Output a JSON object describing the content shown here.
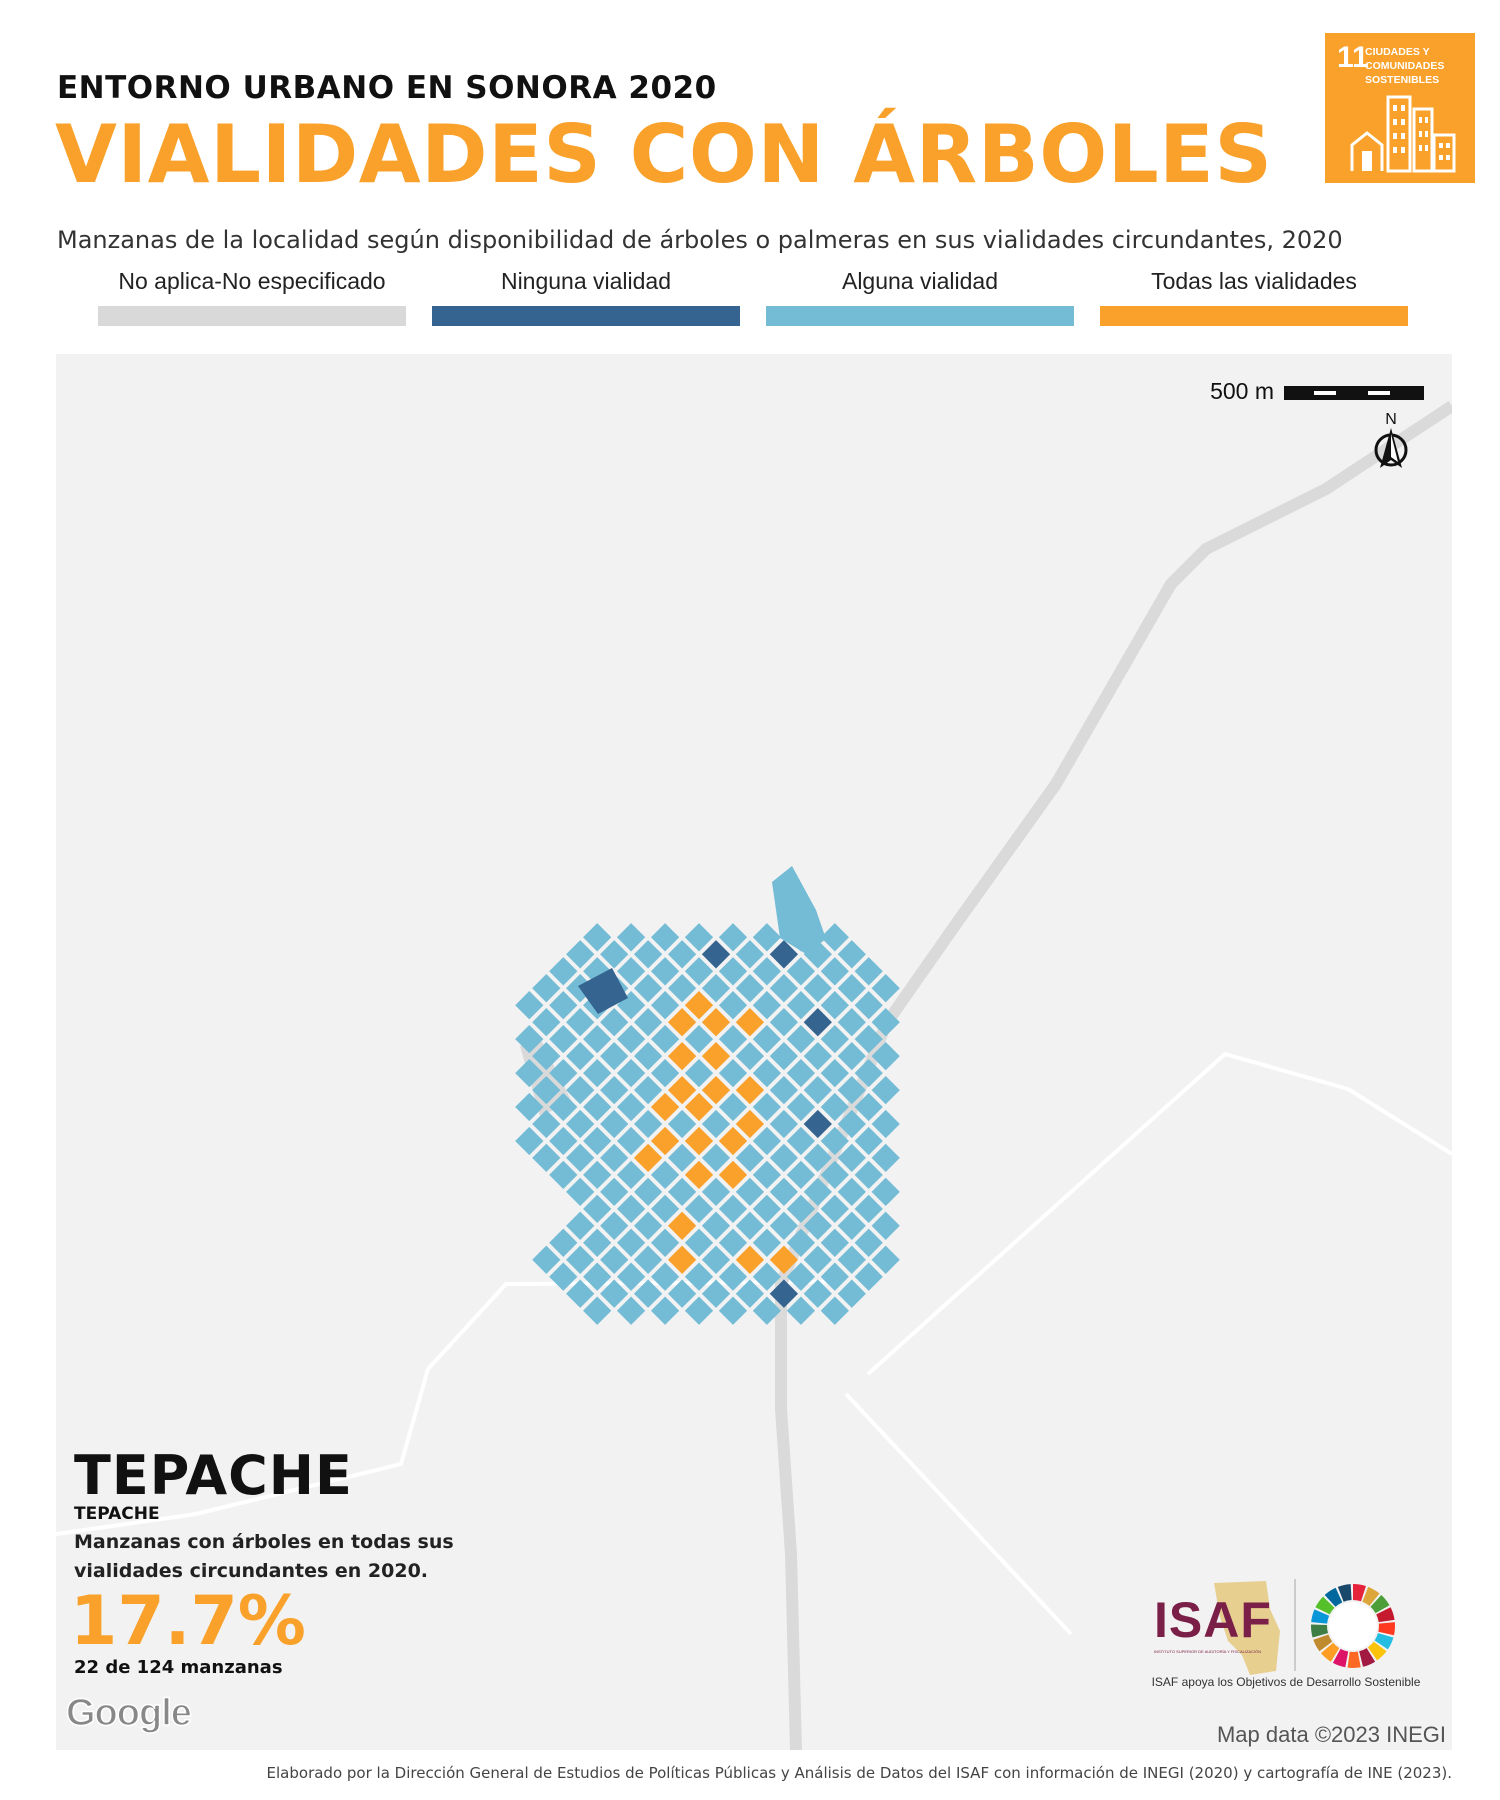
{
  "header": {
    "supertitle": "ENTORNO URBANO EN SONORA 2020",
    "title": "VIALIDADES CON ÁRBOLES",
    "subtitle": "Manzanas de la localidad según disponibilidad de árboles o palmeras en sus vialidades circundantes, 2020"
  },
  "sdg_badge": {
    "number": "11",
    "text": "CIUDADES Y COMUNIDADES SOSTENIBLES",
    "color": "#F9A12B"
  },
  "legend": [
    {
      "label": "No aplica-No especificado",
      "color": "#D9D9D9"
    },
    {
      "label": "Ninguna vialidad",
      "color": "#34648F"
    },
    {
      "label": "Alguna vialidad",
      "color": "#74BCD6"
    },
    {
      "label": "Todas las vialidades",
      "color": "#F9A12B"
    }
  ],
  "map": {
    "scale_label": "500 m",
    "north_label": "N",
    "attribution": "Map data ©2023 INEGI",
    "google_logo": "Google",
    "background_color": "#F2F2F2",
    "road_color": "#DADADA"
  },
  "locality": {
    "name": "TEPACHE",
    "municipality": "TEPACHE",
    "description": "Manzanas con árboles en todas sus vialidades circundantes en 2020.",
    "percentage": "17.7%",
    "count_text": "22 de 124 manzanas"
  },
  "logos": {
    "isaf": "ISAF",
    "isaf_subtitle": "INSTITUTO SUPERIOR DE AUDITORÍA Y FISCALIZACIÓN",
    "tagline": "ISAF apoya los Objetivos de Desarrollo Sostenible"
  },
  "footer": {
    "credit": "Elaborado por la Dirección General de Estudios de Políticas Públicas y Análisis de Datos del ISAF con información de INEGI (2020) y cartografía de INE (2023)."
  }
}
